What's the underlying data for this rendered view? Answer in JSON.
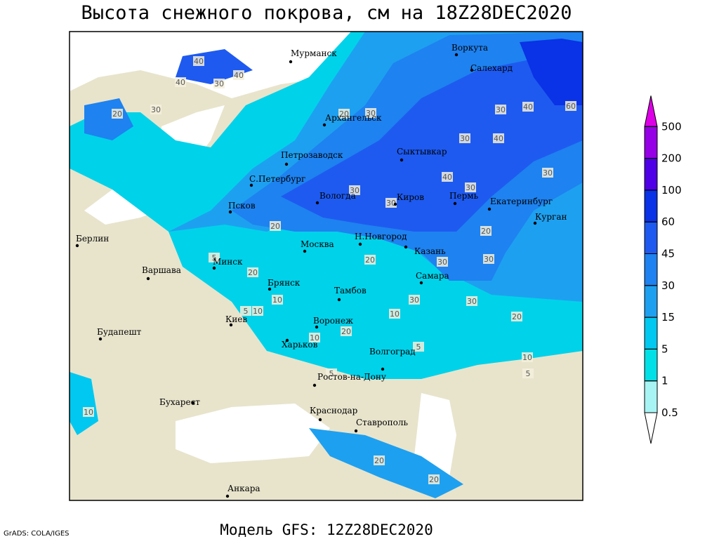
{
  "header": {
    "title": "Высота снежного покрова, см на 18Z28DEC2020"
  },
  "footer": {
    "model": "Модель GFS: 12Z28DEC2020",
    "credit": "GrADS: COLA/IGES"
  },
  "legend": {
    "levels": [
      0.5,
      1,
      5,
      15,
      30,
      45,
      60,
      100,
      200,
      500
    ],
    "colors": [
      "#ffffff",
      "#a8f4f4",
      "#00e0e6",
      "#00c8f0",
      "#1ea0f0",
      "#1e82f0",
      "#1e5af0",
      "#0a32e6",
      "#5000e6",
      "#9600e6",
      "#dc00e6"
    ]
  },
  "cities": [
    "Мурманск",
    "Воркута",
    "Салехард",
    "Архангельск",
    "Петрозаводск",
    "Сыктывкар",
    "С.Петербург",
    "Вологда",
    "Киров",
    "Пермь",
    "Екатеринбург",
    "Курган",
    "Псков",
    "Н.Новгород",
    "Москва",
    "Казань",
    "Берлин",
    "Минск",
    "Варшава",
    "Самара",
    "Брянск",
    "Тамбов",
    "Киев",
    "Воронеж",
    "Будапешт",
    "Харьков",
    "Волгоград",
    "Ростов-на-Дону",
    "Бухарест",
    "Краснодар",
    "Ставрополь",
    "Анкара"
  ],
  "contour_labels": [
    40,
    30,
    40,
    30,
    20,
    40,
    30,
    20,
    30,
    40,
    60,
    30,
    40,
    30,
    40,
    30,
    20,
    30,
    30,
    20,
    20,
    30,
    30,
    20,
    30,
    30,
    20,
    10,
    5,
    10,
    5,
    10,
    5,
    10,
    20,
    5,
    10,
    5,
    10,
    20,
    20
  ]
}
